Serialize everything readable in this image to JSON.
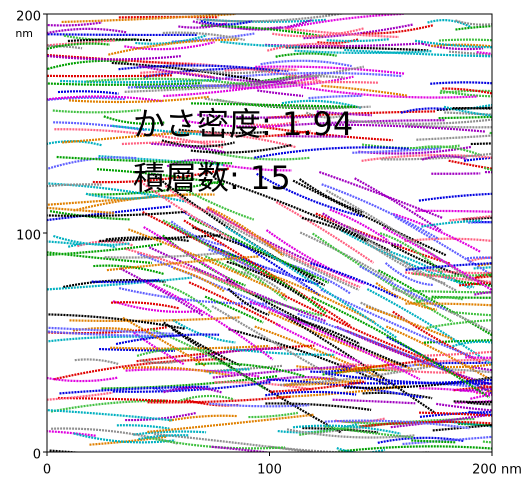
{
  "chart_data": {
    "type": "fiber-map",
    "annotations": [
      "かさ密度: 1.94",
      "積層数: 15"
    ],
    "xlim": [
      0,
      200
    ],
    "xticks": [
      0,
      100,
      {
        "value": 200,
        "label": "200 nm"
      }
    ],
    "ylim": [
      0,
      200
    ],
    "yticks": [
      0,
      100,
      200
    ],
    "y_unit": "nm"
  }
}
